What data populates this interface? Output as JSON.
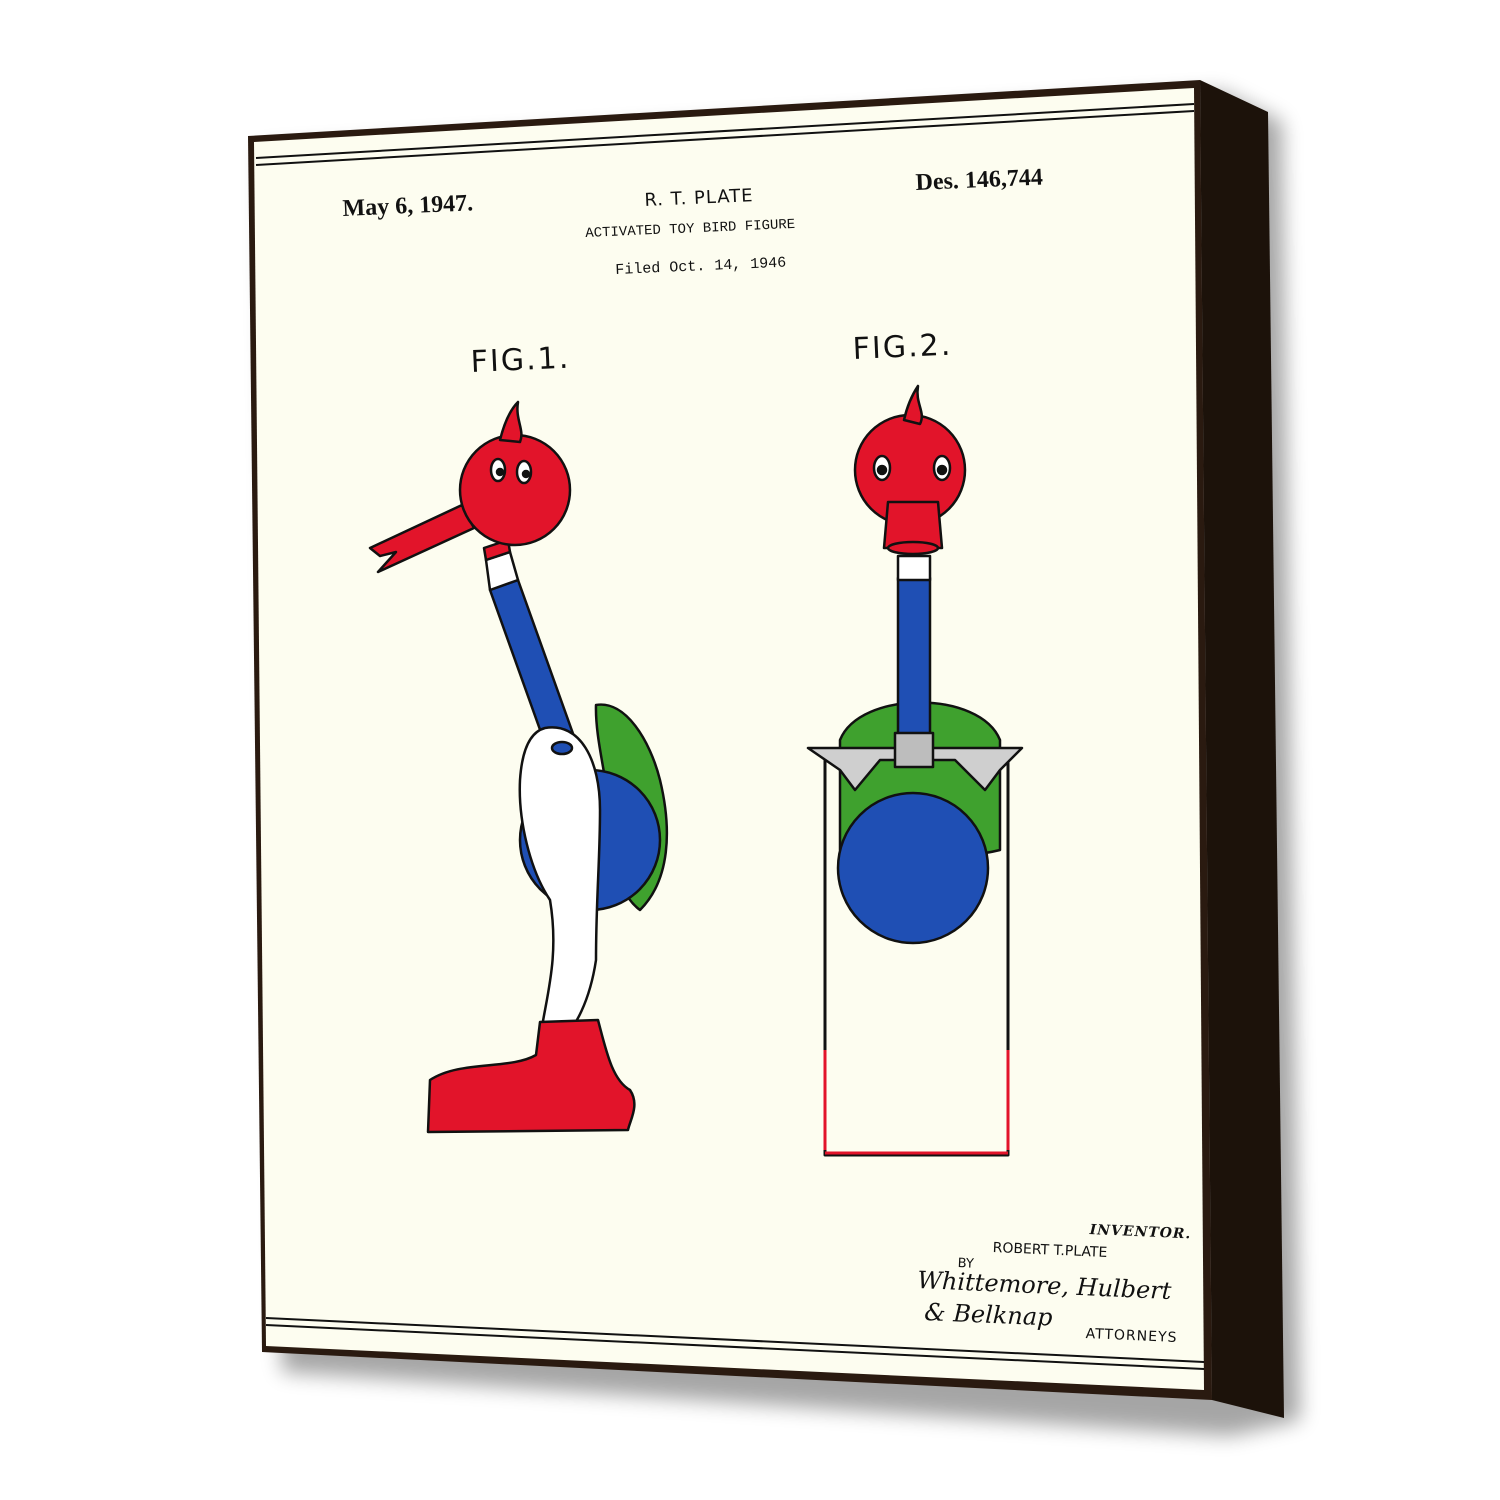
{
  "colors": {
    "paper": "#fdfdf0",
    "frame": "#2a1a10",
    "red": "#e2142a",
    "blue": "#1f4fb4",
    "green": "#3fa12e",
    "white": "#ffffff",
    "ink": "#111111"
  },
  "patent": {
    "date": "May 6, 1947.",
    "inventor_header": "R. T. PLATE",
    "title": "ACTIVATED TOY BIRD FIGURE",
    "filed": "Filed Oct. 14, 1946",
    "number": "Des. 146,744"
  },
  "figures": {
    "fig1_label": "FIG.1.",
    "fig2_label": "FIG.2."
  },
  "signature_block": {
    "inventor_label": "INVENTOR.",
    "inventor_name": "ROBERT T.PLATE",
    "by_label": "BY",
    "signature_line1": "Whittemore, Hulbert",
    "signature_line2": "& Belknap",
    "attorneys_label": "ATTORNEYS"
  }
}
